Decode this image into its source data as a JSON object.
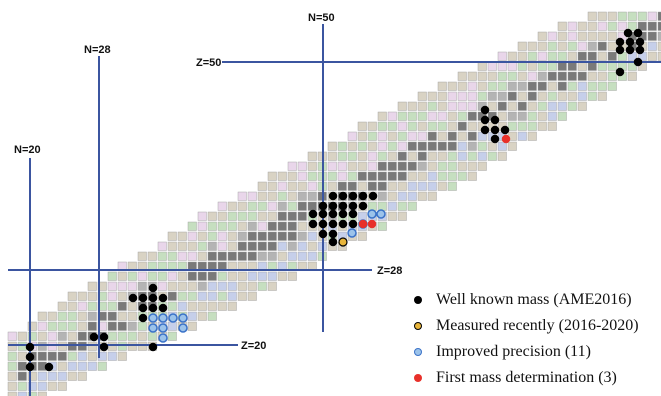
{
  "magic_lines": {
    "n20": "N=20",
    "n28": "N=28",
    "n50": "N=50",
    "z20": "Z=20",
    "z28": "Z=28",
    "z50": "Z=50"
  },
  "legend": [
    {
      "label": "Well known mass (AME2016)",
      "fill": "#000000",
      "stroke": "#000000"
    },
    {
      "label": "Measured recently (2016-2020)",
      "fill": "#e8b53a",
      "stroke": "#000000"
    },
    {
      "label": "Improved precision (11)",
      "fill": "#9cc3ea",
      "stroke": "#3a72c8"
    },
    {
      "label": "First mass determination (3)",
      "fill": "#e8302a",
      "stroke": "#e8302a"
    }
  ],
  "colors": {
    "magic_line": "#3b55a0",
    "cell_stable": "#7a7a7a",
    "cell_green": "#c6dfc0",
    "cell_blue": "#c6cfea",
    "cell_pink": "#e9d6ea",
    "cell_tan": "#d9d3c4",
    "cell_gray": "#b4b4b4"
  }
}
